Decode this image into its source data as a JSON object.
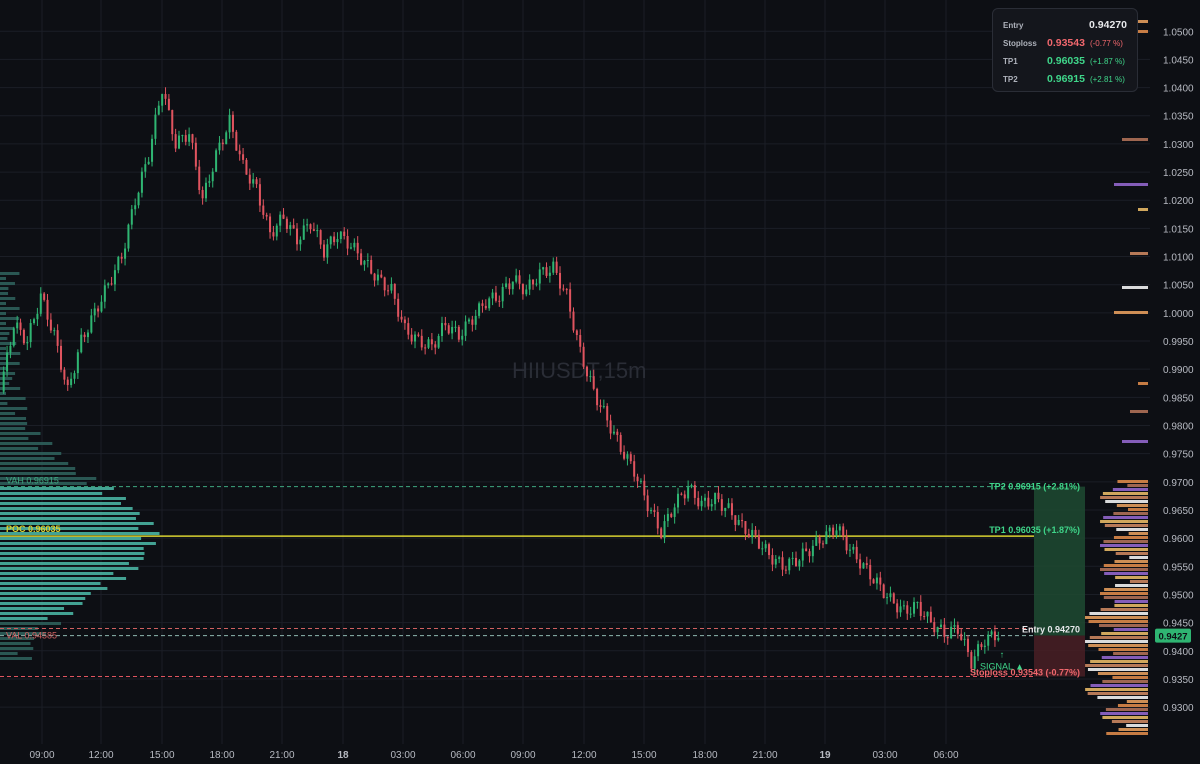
{
  "watermark": "HIIUSDT,15m",
  "colors": {
    "background": "#0d0f14",
    "grid": "#1b1e26",
    "up": "#2fb572",
    "down": "#e0545f",
    "poc": "#d9d231",
    "tp": "#3fd68a",
    "stop": "#e0545f",
    "entry": "#e8e9ec",
    "volume_profile": "#3f8f86"
  },
  "info_panel": {
    "entry_label": "Entry",
    "entry_value": "0.94270",
    "stop_label": "Stoploss",
    "stop_value": "0.93543",
    "stop_pct": "(-0.77 %)",
    "tp1_label": "TP1",
    "tp1_value": "0.96035",
    "tp1_pct": "(+1.87 %)",
    "tp2_label": "TP2",
    "tp2_value": "0.96915",
    "tp2_pct": "(+2.81 %)"
  },
  "levels": {
    "vah_label": "VAH 0.96915",
    "poc_label": "POC 0.96035",
    "val_label": "VAL 0.94585",
    "tp2_label": "TP2 0.96915 (+2.81%)",
    "tp1_label": "TP1 0.96035 (+1.87%)",
    "entry_label": "Entry 0.94270",
    "stop_label": "Stoploss 0.93543 (-0.77%)",
    "signal_label": "SIGNAL ▲",
    "current_price": "0.9427"
  },
  "chart_data": {
    "type": "candlestick",
    "symbol": "HIIUSDT",
    "timeframe": "15m",
    "y_axis": {
      "ylim": [
        0.927,
        1.052
      ],
      "ticks": [
        "0.9300",
        "0.9350",
        "0.9400",
        "0.9450",
        "0.9500",
        "0.9550",
        "0.9600",
        "0.9650",
        "0.9700",
        "0.9750",
        "0.9800",
        "0.9850",
        "0.9900",
        "0.9950",
        "1.0000",
        "1.0050",
        "1.0100",
        "1.0150",
        "1.0200",
        "1.0250",
        "1.0300",
        "1.0350",
        "1.0400",
        "1.0450",
        "1.0500"
      ]
    },
    "x_axis": {
      "ticks": [
        "09:00",
        "12:00",
        "15:00",
        "18:00",
        "21:00",
        "18",
        "03:00",
        "06:00",
        "09:00",
        "12:00",
        "15:00",
        "18:00",
        "21:00",
        "19",
        "03:00",
        "06:00"
      ]
    },
    "candle_close_path": [
      [
        0.986,
        0.998,
        0.995,
        1.003,
        0.996,
        0.986,
        0.995,
        1.0,
        1.005,
        1.01,
        1.02,
        1.028,
        1.04,
        1.03,
        1.032,
        1.02,
        1.028,
        1.034,
        1.026,
        1.022,
        1.014,
        1.017,
        1.013,
        1.016,
        1.011,
        1.014,
        1.012,
        1.009,
        1.006,
        1.004,
        0.997,
        0.995,
        0.994,
        0.998,
        0.996,
        0.999,
        1.002,
        1.003,
        1.006,
        1.004,
        1.007,
        1.008,
        1.003,
        0.993,
        0.986,
        0.981,
        0.976,
        0.972,
        0.966,
        0.961,
        0.966,
        0.969,
        0.966,
        0.967,
        0.965,
        0.962,
        0.96,
        0.957,
        0.955,
        0.956,
        0.958,
        0.96,
        0.962,
        0.958,
        0.955,
        0.952,
        0.949,
        0.947,
        0.948,
        0.945,
        0.943,
        0.944,
        0.938,
        0.942,
        0.943
      ]
    ],
    "volume_profile_left": "bars anchored to left edge; widest near POC 0.96035",
    "volume_profile_right": "heatmap bars anchored to right edge near price axis"
  },
  "trade_box": {
    "tp_zone": [
      0.9427,
      0.96915
    ],
    "stop_zone": [
      0.93543,
      0.9427
    ]
  }
}
